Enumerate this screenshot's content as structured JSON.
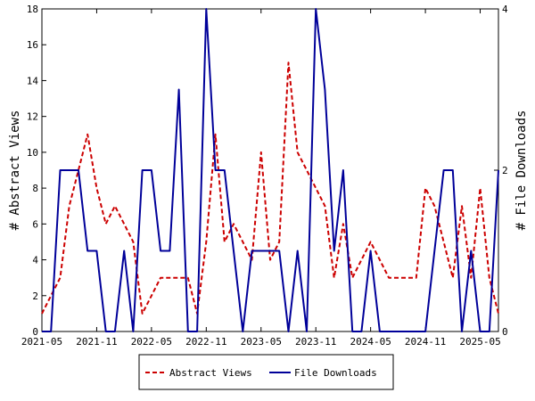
{
  "chart_data": {
    "type": "line",
    "x_ticks": [
      "2021-05",
      "2021-11",
      "2022-05",
      "2022-11",
      "2023-05",
      "2023-11",
      "2024-05",
      "2024-11",
      "2025-05"
    ],
    "x_range": [
      "2021-05",
      "2025-07"
    ],
    "y_left": {
      "label": "# Abstract Views",
      "range": [
        0,
        18
      ],
      "ticks": [
        "0",
        "2",
        "4",
        "6",
        "8",
        "10",
        "12",
        "14",
        "16",
        "18"
      ]
    },
    "y_right": {
      "label": "# File Downloads",
      "range": [
        0,
        4
      ],
      "ticks": [
        "0",
        "2",
        "4"
      ]
    },
    "grid": false,
    "legend_position": "bottom",
    "series": [
      {
        "name": "Abstract Views",
        "axis": "left",
        "color": "#cc0000",
        "style": "dashed",
        "points": [
          [
            "2021-05",
            1
          ],
          [
            "2021-06",
            2
          ],
          [
            "2021-07",
            3
          ],
          [
            "2021-08",
            7
          ],
          [
            "2021-09",
            9
          ],
          [
            "2021-10",
            11
          ],
          [
            "2021-11",
            8
          ],
          [
            "2021-12",
            6
          ],
          [
            "2022-01",
            7
          ],
          [
            "2022-02",
            6
          ],
          [
            "2022-03",
            5
          ],
          [
            "2022-04",
            1
          ],
          [
            "2022-05",
            2
          ],
          [
            "2022-06",
            3
          ],
          [
            "2022-07",
            3
          ],
          [
            "2022-08",
            3
          ],
          [
            "2022-09",
            3
          ],
          [
            "2022-10",
            1
          ],
          [
            "2022-11",
            5
          ],
          [
            "2022-12",
            11
          ],
          [
            "2023-01",
            5
          ],
          [
            "2023-02",
            6
          ],
          [
            "2023-03",
            5
          ],
          [
            "2023-04",
            4
          ],
          [
            "2023-05",
            10
          ],
          [
            "2023-06",
            4
          ],
          [
            "2023-07",
            5
          ],
          [
            "2023-08",
            15
          ],
          [
            "2023-09",
            10
          ],
          [
            "2023-10",
            9
          ],
          [
            "2023-11",
            8
          ],
          [
            "2023-12",
            7
          ],
          [
            "2024-01",
            3
          ],
          [
            "2024-02",
            6
          ],
          [
            "2024-03",
            3
          ],
          [
            "2024-04",
            4
          ],
          [
            "2024-05",
            5
          ],
          [
            "2024-06",
            4
          ],
          [
            "2024-07",
            3
          ],
          [
            "2024-08",
            3
          ],
          [
            "2024-09",
            3
          ],
          [
            "2024-10",
            3
          ],
          [
            "2024-11",
            8
          ],
          [
            "2024-12",
            7
          ],
          [
            "2025-01",
            5
          ],
          [
            "2025-02",
            3
          ],
          [
            "2025-03",
            7
          ],
          [
            "2025-04",
            3
          ],
          [
            "2025-05",
            8
          ],
          [
            "2025-06",
            3
          ],
          [
            "2025-07",
            1
          ]
        ]
      },
      {
        "name": "File Downloads",
        "axis": "right",
        "color": "#000099",
        "style": "solid",
        "points": [
          [
            "2021-05",
            0
          ],
          [
            "2021-06",
            0
          ],
          [
            "2021-07",
            2
          ],
          [
            "2021-08",
            2
          ],
          [
            "2021-09",
            2
          ],
          [
            "2021-10",
            1
          ],
          [
            "2021-11",
            1
          ],
          [
            "2021-12",
            0
          ],
          [
            "2022-01",
            0
          ],
          [
            "2022-02",
            1
          ],
          [
            "2022-03",
            0
          ],
          [
            "2022-04",
            2
          ],
          [
            "2022-05",
            2
          ],
          [
            "2022-06",
            1
          ],
          [
            "2022-07",
            1
          ],
          [
            "2022-08",
            3
          ],
          [
            "2022-09",
            0
          ],
          [
            "2022-10",
            0
          ],
          [
            "2022-11",
            4
          ],
          [
            "2022-12",
            2
          ],
          [
            "2023-01",
            2
          ],
          [
            "2023-02",
            1
          ],
          [
            "2023-03",
            0
          ],
          [
            "2023-04",
            1
          ],
          [
            "2023-05",
            1
          ],
          [
            "2023-06",
            1
          ],
          [
            "2023-07",
            1
          ],
          [
            "2023-08",
            0
          ],
          [
            "2023-09",
            1
          ],
          [
            "2023-10",
            0
          ],
          [
            "2023-11",
            4
          ],
          [
            "2023-12",
            3
          ],
          [
            "2024-01",
            1
          ],
          [
            "2024-02",
            2
          ],
          [
            "2024-03",
            0
          ],
          [
            "2024-04",
            0
          ],
          [
            "2024-05",
            1
          ],
          [
            "2024-06",
            0
          ],
          [
            "2024-07",
            0
          ],
          [
            "2024-08",
            0
          ],
          [
            "2024-09",
            0
          ],
          [
            "2024-10",
            0
          ],
          [
            "2024-11",
            0
          ],
          [
            "2024-12",
            1
          ],
          [
            "2025-01",
            2
          ],
          [
            "2025-02",
            2
          ],
          [
            "2025-03",
            0
          ],
          [
            "2025-04",
            1
          ],
          [
            "2025-05",
            0
          ],
          [
            "2025-06",
            0
          ],
          [
            "2025-07",
            2
          ]
        ]
      }
    ]
  }
}
